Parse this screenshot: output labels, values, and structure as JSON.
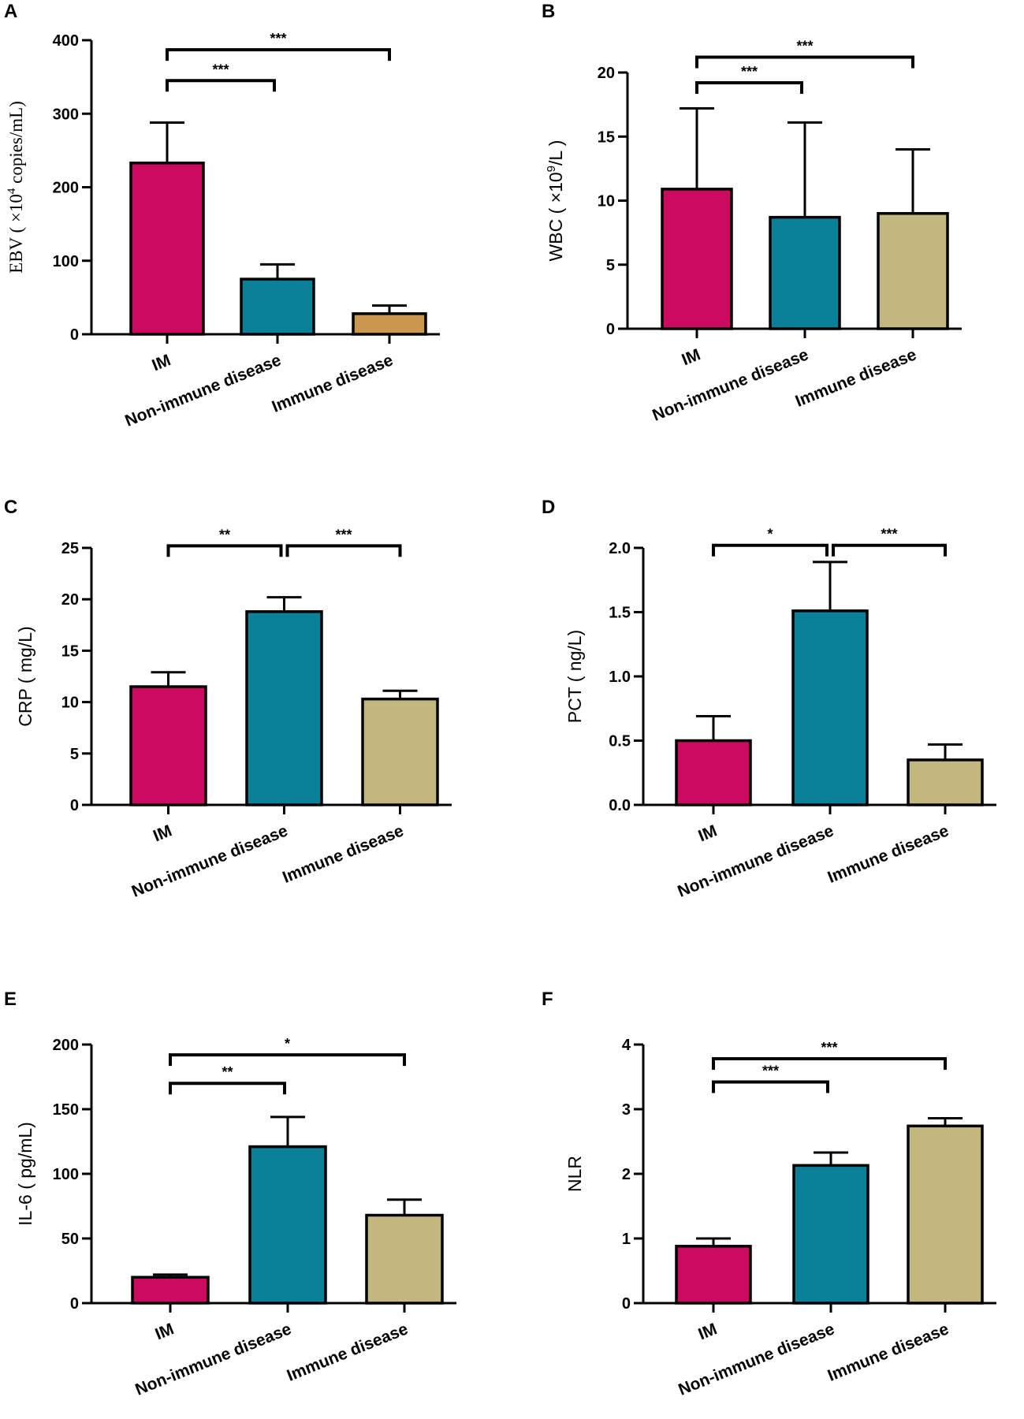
{
  "colors": {
    "im": "#cc0a60",
    "non_immune": "#0b8099",
    "immune": "#c2b77e",
    "immune_ebv": "#c9974d",
    "stroke": "#000000"
  },
  "chart_data": [
    {
      "type": "bar",
      "panel": "A",
      "ylabel": "EBV ( ×10⁴ copies/mL)",
      "ylabel_parts": {
        "pre": "EBV ( ×10",
        "sup": "4",
        "post": " copies/mL)"
      },
      "categories": [
        "IM",
        "Non-immune disease",
        "Immune disease"
      ],
      "values": [
        233,
        75,
        28
      ],
      "errors": [
        55,
        20,
        11
      ],
      "ylim": [
        0,
        400
      ],
      "yticks": [
        0,
        100,
        200,
        300,
        400
      ],
      "ytick_labels": [
        "0",
        "100",
        "200",
        "300",
        "400"
      ],
      "bar_colors": [
        "#cc0a60",
        "#0b8099",
        "#c9974d"
      ],
      "comparisons": [
        {
          "from": 0,
          "to": 1,
          "label": "***",
          "level": 345
        },
        {
          "from": 0,
          "to": 2,
          "label": "***",
          "level": 387
        }
      ]
    },
    {
      "type": "bar",
      "panel": "B",
      "ylabel": "WBC ( ×10⁹/L )",
      "ylabel_parts": {
        "pre": "WBC ( ×10",
        "sup": "9",
        "post": "/L )"
      },
      "categories": [
        "IM",
        "Non-immune disease",
        "Immune disease"
      ],
      "values": [
        10.9,
        8.7,
        9.0
      ],
      "errors": [
        6.3,
        7.4,
        5.0
      ],
      "ylim": [
        0,
        20
      ],
      "yticks": [
        0,
        5,
        10,
        15,
        20
      ],
      "ytick_labels": [
        "0",
        "5",
        "10",
        "15",
        "20"
      ],
      "bar_colors": [
        "#cc0a60",
        "#0b8099",
        "#c2b77e"
      ],
      "comparisons": [
        {
          "from": 0,
          "to": 1,
          "label": "***",
          "level": 19.2
        },
        {
          "from": 0,
          "to": 2,
          "label": "***",
          "level": 21.2
        }
      ]
    },
    {
      "type": "bar",
      "panel": "C",
      "ylabel": "CRP ( mg/L)",
      "categories": [
        "IM",
        "Non-immune disease",
        "Immune disease"
      ],
      "values": [
        11.5,
        18.8,
        10.3
      ],
      "errors": [
        1.4,
        1.4,
        0.8
      ],
      "ylim": [
        0,
        25
      ],
      "yticks": [
        0,
        5,
        10,
        15,
        20,
        25
      ],
      "ytick_labels": [
        "0",
        "5",
        "10",
        "15",
        "20",
        "25"
      ],
      "bar_colors": [
        "#cc0a60",
        "#0b8099",
        "#c2b77e"
      ],
      "comparisons": [
        {
          "from": 0,
          "to": 1,
          "label": "**",
          "level": 25.2
        },
        {
          "from": 1,
          "to": 2,
          "label": "***",
          "level": 25.2
        }
      ]
    },
    {
      "type": "bar",
      "panel": "D",
      "ylabel": "PCT ( ng/L)",
      "categories": [
        "IM",
        "Non-immune disease",
        "Immune disease"
      ],
      "values": [
        0.5,
        1.51,
        0.35
      ],
      "errors": [
        0.19,
        0.38,
        0.12
      ],
      "ylim": [
        0,
        2.0
      ],
      "yticks": [
        0,
        0.5,
        1.0,
        1.5,
        2.0
      ],
      "ytick_labels": [
        "0.0",
        "0.5",
        "1.0",
        "1.5",
        "2.0"
      ],
      "bar_colors": [
        "#cc0a60",
        "#0b8099",
        "#c2b77e"
      ],
      "comparisons": [
        {
          "from": 0,
          "to": 1,
          "label": "*",
          "level": 2.02
        },
        {
          "from": 1,
          "to": 2,
          "label": "***",
          "level": 2.02
        }
      ]
    },
    {
      "type": "bar",
      "panel": "E",
      "ylabel": "IL-6 ( pg/mL)",
      "categories": [
        "IM",
        "Non-immune disease",
        "Immune disease"
      ],
      "values": [
        20,
        121,
        68
      ],
      "errors": [
        2,
        23,
        12
      ],
      "ylim": [
        0,
        200
      ],
      "yticks": [
        0,
        50,
        100,
        150,
        200
      ],
      "ytick_labels": [
        "0",
        "50",
        "100",
        "150",
        "200"
      ],
      "bar_colors": [
        "#cc0a60",
        "#0b8099",
        "#c2b77e"
      ],
      "comparisons": [
        {
          "from": 0,
          "to": 1,
          "label": "**",
          "level": 170
        },
        {
          "from": 0,
          "to": 2,
          "label": "*",
          "level": 192
        }
      ]
    },
    {
      "type": "bar",
      "panel": "F",
      "ylabel": "NLR",
      "categories": [
        "IM",
        "Non-immune disease",
        "Immune disease"
      ],
      "values": [
        0.88,
        2.13,
        2.74
      ],
      "errors": [
        0.12,
        0.2,
        0.12
      ],
      "ylim": [
        0,
        4
      ],
      "yticks": [
        0,
        1,
        2,
        3,
        4
      ],
      "ytick_labels": [
        "0",
        "1",
        "2",
        "3",
        "4"
      ],
      "bar_colors": [
        "#cc0a60",
        "#0b8099",
        "#c2b77e"
      ],
      "comparisons": [
        {
          "from": 0,
          "to": 1,
          "label": "***",
          "level": 3.42
        },
        {
          "from": 0,
          "to": 2,
          "label": "***",
          "level": 3.78
        }
      ]
    }
  ]
}
